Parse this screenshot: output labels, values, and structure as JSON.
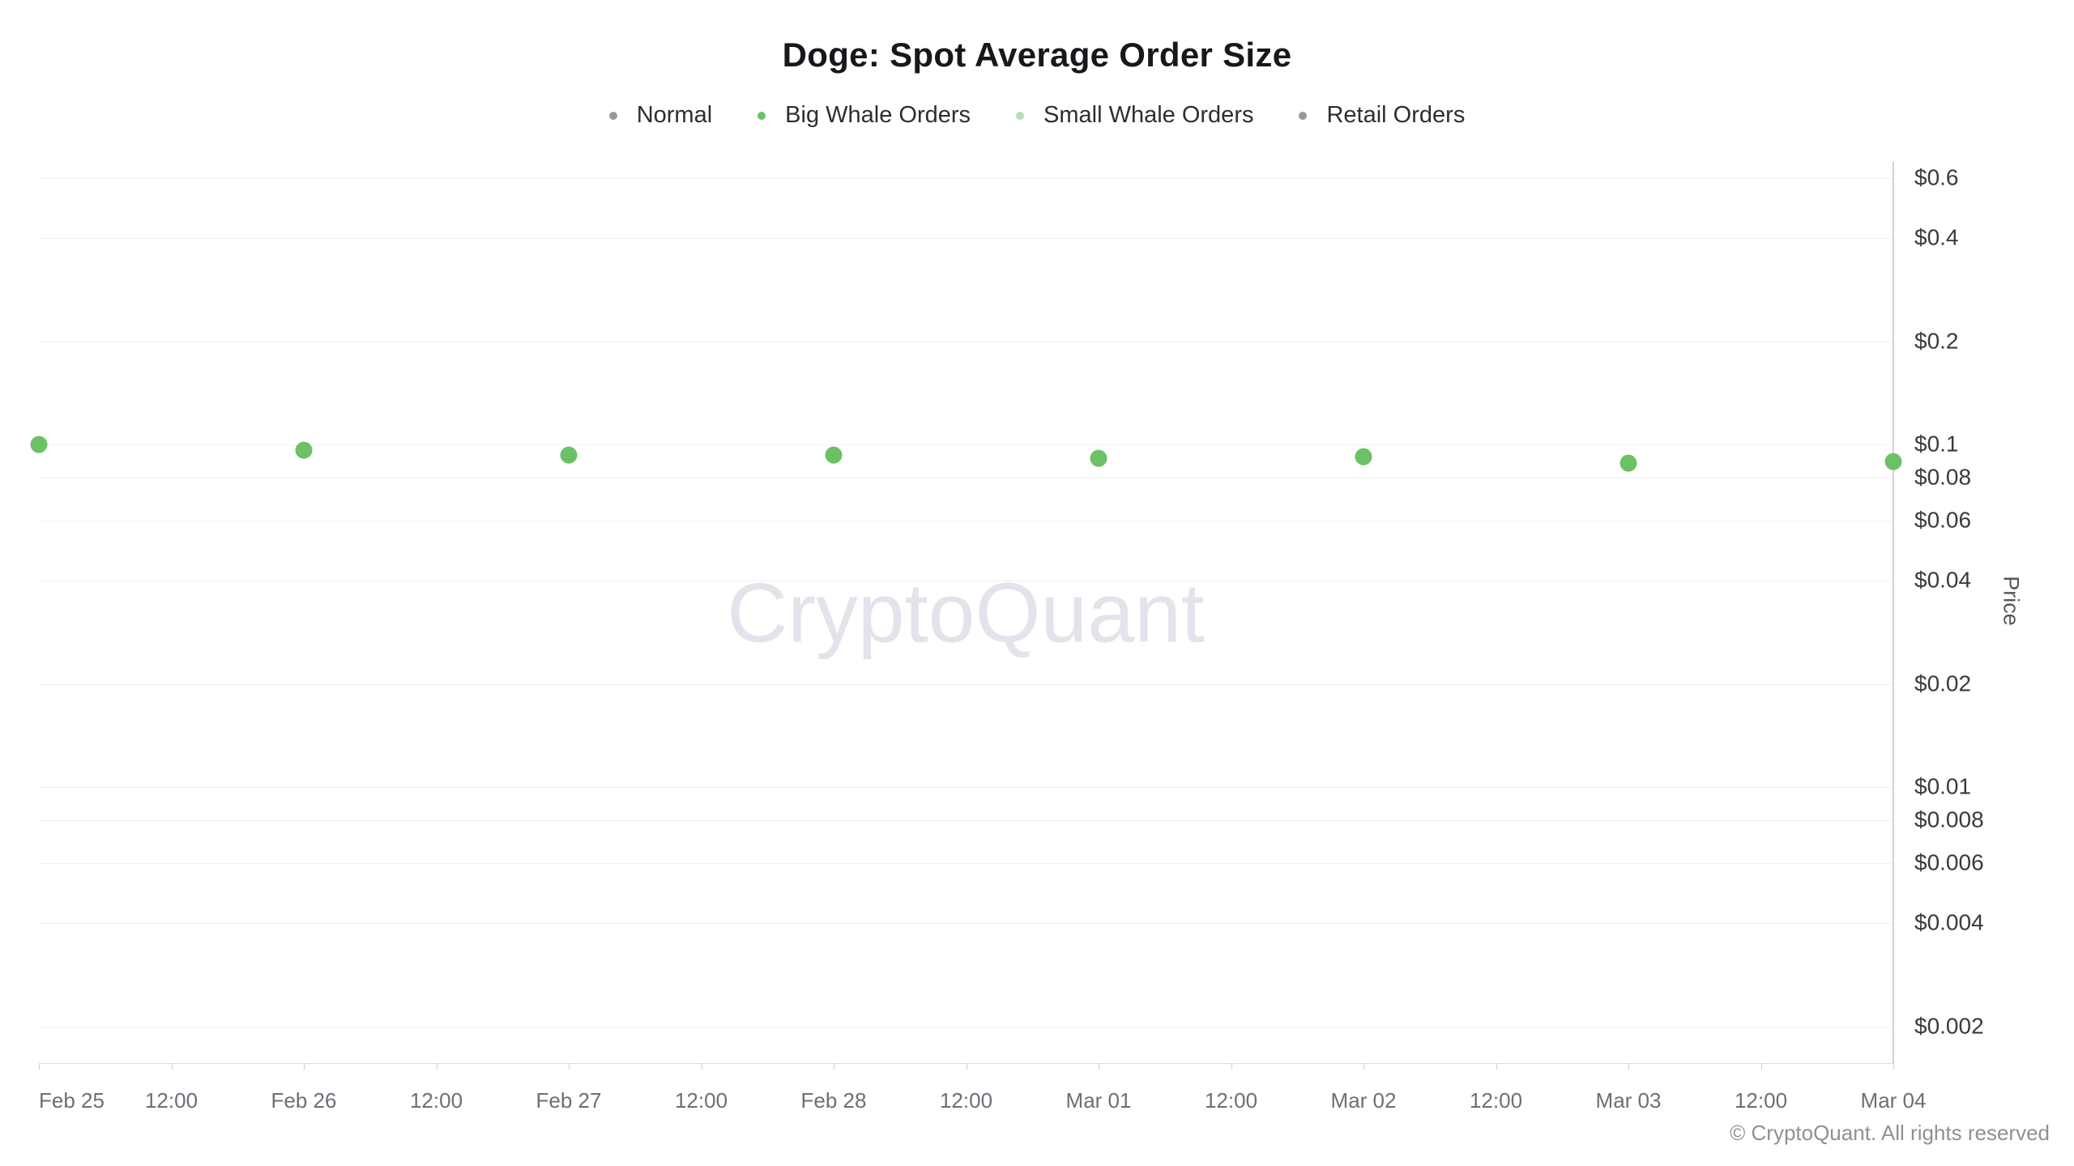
{
  "title": "Doge: Spot Average Order Size",
  "watermark": "CryptoQuant",
  "copyright": "© CryptoQuant. All rights reserved",
  "colors": {
    "big_whale": "#6cc166",
    "small_whale": "#b5e0b2",
    "normal": "#97979f",
    "retail": "#97979f",
    "gridline": "#f1f1f4",
    "axis_line": "#d2d2d9"
  },
  "legend": [
    {
      "label": "Normal",
      "color": "#97979f"
    },
    {
      "label": "Big Whale Orders",
      "color": "#6cc166"
    },
    {
      "label": "Small Whale Orders",
      "color": "#b5e0b2"
    },
    {
      "label": "Retail Orders",
      "color": "#97979f"
    }
  ],
  "yaxis": {
    "title": "Price",
    "scale": "log",
    "tick_labels": [
      "$0.6",
      "$0.4",
      "$0.2",
      "$0.1",
      "$0.08",
      "$0.06",
      "$0.04",
      "$0.02",
      "$0.01",
      "$0.008",
      "$0.006",
      "$0.004",
      "$0.002"
    ],
    "tick_values": [
      0.6,
      0.4,
      0.2,
      0.1,
      0.08,
      0.06,
      0.04,
      0.02,
      0.01,
      0.008,
      0.006,
      0.004,
      0.002
    ]
  },
  "xaxis": {
    "tick_labels": [
      "Feb 25",
      "12:00",
      "Feb 26",
      "12:00",
      "Feb 27",
      "12:00",
      "Feb 28",
      "12:00",
      "Mar 01",
      "12:00",
      "Mar 02",
      "12:00",
      "Mar 03",
      "12:00",
      "Mar 04"
    ]
  },
  "chart_data": {
    "type": "scatter",
    "title": "Doge: Spot Average Order Size",
    "xlabel": "",
    "ylabel": "Price",
    "yscale": "log",
    "ylim": [
      0.0015,
      0.75
    ],
    "grid": "horizontal",
    "legend_position": "top",
    "categories": [
      "Feb 25",
      "Feb 26",
      "Feb 27",
      "Feb 28",
      "Mar 01",
      "Mar 02",
      "Mar 03",
      "Mar 04"
    ],
    "series": [
      {
        "name": "Big Whale Orders",
        "color": "#6cc166",
        "values": [
          0.1,
          0.096,
          0.093,
          0.093,
          0.091,
          0.092,
          0.088,
          0.089
        ]
      },
      {
        "name": "Normal",
        "color": "#97979f",
        "values": []
      },
      {
        "name": "Small Whale Orders",
        "color": "#b5e0b2",
        "values": []
      },
      {
        "name": "Retail Orders",
        "color": "#97979f",
        "values": []
      }
    ]
  }
}
